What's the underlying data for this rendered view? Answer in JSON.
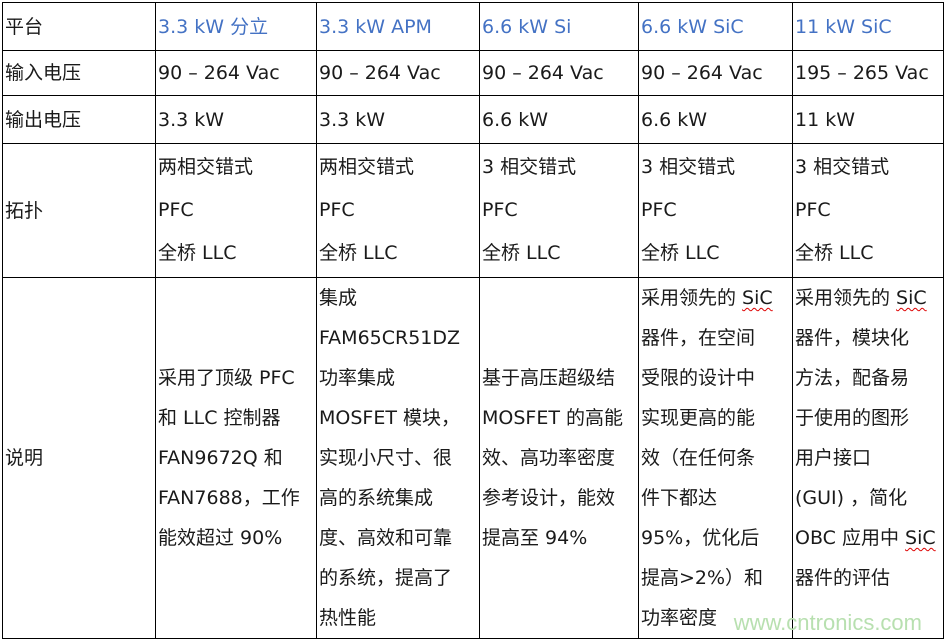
{
  "table": {
    "header": [
      "平台",
      "3.3 kW 分立",
      "3.3 kW APM",
      "6.6 kW Si",
      "6.6 kW SiC",
      "11 kW SiC"
    ],
    "rows": [
      {
        "label": "输入电压",
        "cells": [
          [
            "90 – 264 Vac"
          ],
          [
            "90 – 264 Vac"
          ],
          [
            "90 – 264 Vac"
          ],
          [
            "90 – 264 Vac"
          ],
          [
            "195 – 265 Vac"
          ]
        ]
      },
      {
        "label": "输出电压",
        "cells": [
          [
            "3.3 kW"
          ],
          [
            "3.3 kW"
          ],
          [
            "6.6 kW"
          ],
          [
            "6.6 kW"
          ],
          [
            "11 kW"
          ]
        ]
      },
      {
        "label": "拓扑",
        "cells": [
          [
            "两相交错式",
            "PFC",
            "全桥 LLC"
          ],
          [
            "两相交错式",
            "PFC",
            "全桥 LLC"
          ],
          [
            "3 相交错式",
            "PFC",
            "全桥 LLC"
          ],
          [
            "3 相交错式",
            "PFC",
            "全桥 LLC"
          ],
          [
            "3 相交错式",
            "PFC",
            "全桥 LLC"
          ]
        ]
      },
      {
        "label": "说明",
        "cells": [
          [
            "采用了顶级 PFC",
            "和 LLC 控制器",
            "FAN9672Q 和",
            "FAN7688，工作",
            "能效超过 90%"
          ],
          [
            "集成",
            "FAM65CR51DZ",
            "功率集成",
            "MOSFET 模块，",
            "实现小尺寸、很",
            "高的系统集成",
            "度、高效和可靠",
            "的系统，提高了",
            "热性能"
          ],
          [
            "基于高压超级结",
            "MOSFET 的高能",
            "效、高功率密度",
            "参考设计，能效",
            "提高至 94%"
          ],
          [
            "采用领先的 SiC",
            "器件，在空间",
            "受限的设计中",
            "实现更高的能",
            "效（在任何条",
            "件下都达",
            "95%，优化后",
            "提高>2%）和",
            "功率密度"
          ],
          [
            "采用领先的 SiC",
            "器件，模块化",
            "方法，配备易",
            "于使用的图形",
            "用户接口",
            "(GUI) ，简化",
            "OBC 应用中 SiC",
            "器件的评估"
          ]
        ]
      }
    ]
  },
  "watermark": "www.cntronics.com",
  "colors": {
    "header_text": "#4472c4",
    "border": "#000000",
    "watermark": "#b8e0b0"
  }
}
